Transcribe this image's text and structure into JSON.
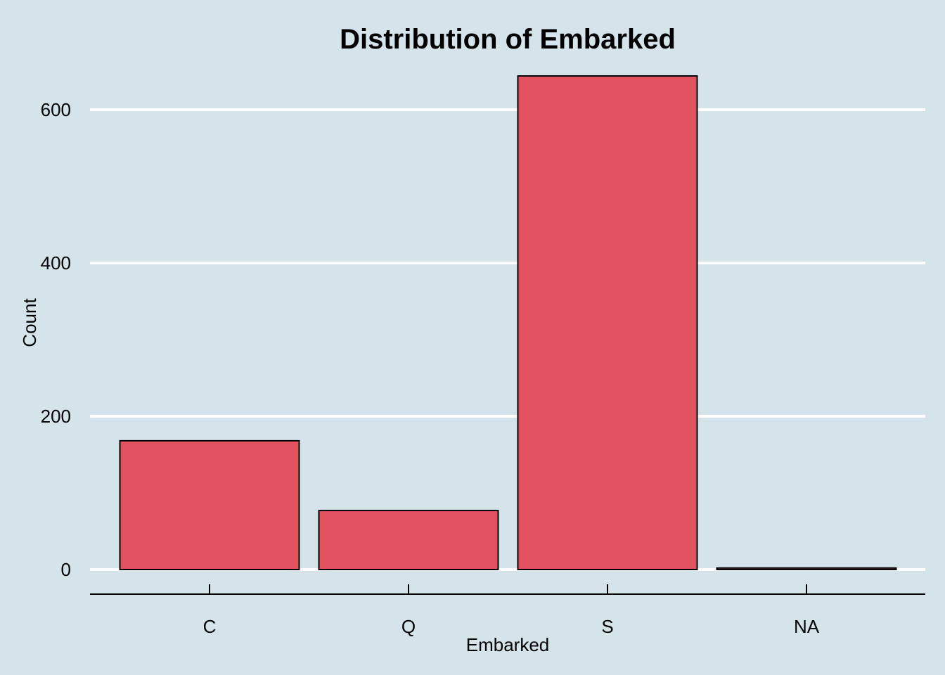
{
  "chart_data": {
    "type": "bar",
    "title": "Distribution of Embarked",
    "xlabel": "Embarked",
    "ylabel": "Count",
    "categories": [
      "C",
      "Q",
      "S",
      "NA"
    ],
    "values": [
      168,
      77,
      644,
      2
    ],
    "ylim": [
      0,
      645
    ],
    "yticks": [
      0,
      200,
      400,
      600
    ],
    "grid": "horizontal major lines",
    "legend": "none",
    "colors": {
      "background": "#d5e4eb",
      "bar_fill": "#e3535f",
      "bar_stroke": "#000000",
      "grid": "#ffffff",
      "axis": "#000000"
    }
  }
}
